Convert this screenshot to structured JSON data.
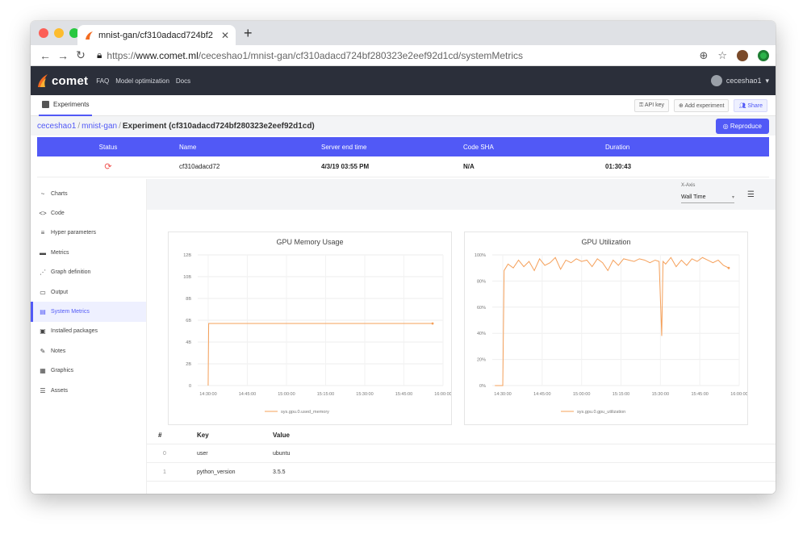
{
  "browser": {
    "tab_title": "mnist-gan/cf310adacd724bf2",
    "url_prefix": "https://",
    "url_host": "www.comet.ml",
    "url_path": "/ceceshao1/mnist-gan/cf310adacd724bf280323e2eef92d1cd/systemMetrics"
  },
  "header": {
    "logo": "comet",
    "links": [
      "FAQ",
      "Model optimization",
      "Docs"
    ],
    "user": "ceceshao1"
  },
  "toolbar": {
    "experiments_tab": "Experiments",
    "api_key": "API key",
    "add_experiment": "Add experiment",
    "share": "Share"
  },
  "breadcrumb": {
    "user": "ceceshao1",
    "project": "mnist-gan",
    "current": "Experiment (cf310adacd724bf280323e2eef92d1cd)",
    "reproduce": "Reproduce"
  },
  "summary": {
    "columns": [
      "Status",
      "Name",
      "Server end time",
      "Code SHA",
      "Duration"
    ],
    "row": {
      "status_icon": "sync-icon",
      "name": "cf310adacd72",
      "server_end_time": "4/3/19 03:55 PM",
      "code_sha": "N/A",
      "duration": "01:30:43"
    },
    "status_color": "#f0524f"
  },
  "sidebar": {
    "items": [
      {
        "icon": "~",
        "label": "Charts"
      },
      {
        "icon": "<>",
        "label": "Code"
      },
      {
        "icon": "≡",
        "label": "Hyper parameters"
      },
      {
        "icon": "▬",
        "label": "Metrics"
      },
      {
        "icon": "⋰",
        "label": "Graph definition"
      },
      {
        "icon": "▭",
        "label": "Output"
      },
      {
        "icon": "▤",
        "label": "System Metrics"
      },
      {
        "icon": "▣",
        "label": "Installed packages"
      },
      {
        "icon": "✎",
        "label": "Notes"
      },
      {
        "icon": "▦",
        "label": "Graphics"
      },
      {
        "icon": "☰",
        "label": "Assets"
      }
    ],
    "active_index": 6
  },
  "xaxis_control": {
    "label": "X-Axis",
    "value": "Wall Time"
  },
  "chart_data": [
    {
      "type": "line",
      "title": "GPU Memory Usage",
      "x_ticks": [
        "14:30:00",
        "14:45:00",
        "15:00:00",
        "15:15:00",
        "15:30:00",
        "15:45:00",
        "16:00:00"
      ],
      "y_ticks": [
        "0",
        "2B",
        "4B",
        "6B",
        "8B",
        "10B",
        "12B"
      ],
      "ylim": [
        0,
        12
      ],
      "x_minutes": [
        0,
        0.2,
        86
      ],
      "series": [
        {
          "name": "sys.gpu.0.used_memory",
          "values": [
            0,
            5.7,
            5.7
          ]
        }
      ],
      "color": "#f5a05a"
    },
    {
      "type": "line",
      "title": "GPU Utilization",
      "x_ticks": [
        "14:30:00",
        "14:45:00",
        "15:00:00",
        "15:15:00",
        "15:30:00",
        "15:45:00",
        "16:00:00"
      ],
      "y_ticks": [
        "0%",
        "20%",
        "40%",
        "60%",
        "80%",
        "100%"
      ],
      "ylim": [
        0,
        100
      ],
      "x_minutes": [
        -3,
        0,
        0.5,
        2,
        4,
        6,
        8,
        10,
        12,
        14,
        16,
        18,
        20,
        22,
        24,
        26,
        28,
        30,
        32,
        34,
        36,
        38,
        40,
        42,
        44,
        46,
        48,
        50,
        52,
        54,
        56,
        58,
        59.5,
        60.5,
        61,
        62,
        64,
        66,
        68,
        70,
        72,
        74,
        76,
        78,
        80,
        82,
        84,
        86
      ],
      "series": [
        {
          "name": "sys.gpu.0.gpu_utilization",
          "values": [
            0,
            0,
            88,
            93,
            90,
            96,
            91,
            95,
            88,
            97,
            92,
            94,
            98,
            89,
            96,
            94,
            97,
            95,
            96,
            91,
            97,
            94,
            88,
            96,
            92,
            97,
            96,
            95,
            97,
            96,
            94,
            96,
            95,
            38,
            95,
            93,
            98,
            91,
            96,
            92,
            97,
            95,
            98,
            96,
            94,
            96,
            92,
            90
          ]
        }
      ],
      "color": "#f5a05a"
    }
  ],
  "params_table": {
    "columns": [
      "#",
      "Key",
      "Value"
    ],
    "rows": [
      {
        "index": "0",
        "key": "user",
        "value": "ubuntu"
      },
      {
        "index": "1",
        "key": "python_version",
        "value": "3.5.5"
      }
    ]
  },
  "colors": {
    "accent": "#5159f6",
    "header_bg": "#2b2f3a",
    "line": "#f5a05a"
  }
}
